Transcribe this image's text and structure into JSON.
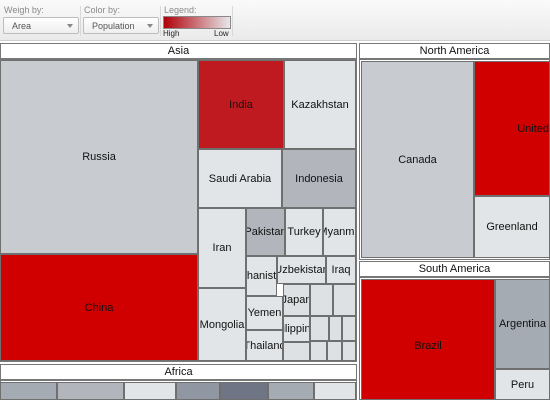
{
  "toolbar": {
    "weigh_label": "Weigh by:",
    "weigh_value": "Area",
    "color_label": "Color by:",
    "color_value": "Population",
    "legend_label": "Legend:",
    "legend_high": "High",
    "legend_low": "Low",
    "legend_colors": {
      "high": "#b0000a",
      "low": "#e6e8ea"
    }
  },
  "treemap": {
    "asia": {
      "title": "Asia",
      "russia": "Russia",
      "china": "China",
      "india": "India",
      "kazakhstan": "Kazakhstan",
      "saudi": "Saudi Arabia",
      "indonesia": "Indonesia",
      "iran": "Iran",
      "pakistan": "Pakistan",
      "turkey": "Turkey",
      "myanmar": "Myanma",
      "afghanistan": "ghanista",
      "uzbekistan": "Uzbekistan",
      "iraq": "Iraq",
      "mongolia": "Mongolia",
      "yemen": "Yemen",
      "japan": "Japan",
      "philippines": "ilippin",
      "thailand": "Thailand"
    },
    "north_america": {
      "title": "North America",
      "canada": "Canada",
      "united": "United",
      "greenland": "Greenland"
    },
    "south_america": {
      "title": "South America",
      "brazil": "Brazil",
      "argentina": "Argentina",
      "peru": "Peru"
    },
    "africa": {
      "title": "Africa"
    }
  }
}
